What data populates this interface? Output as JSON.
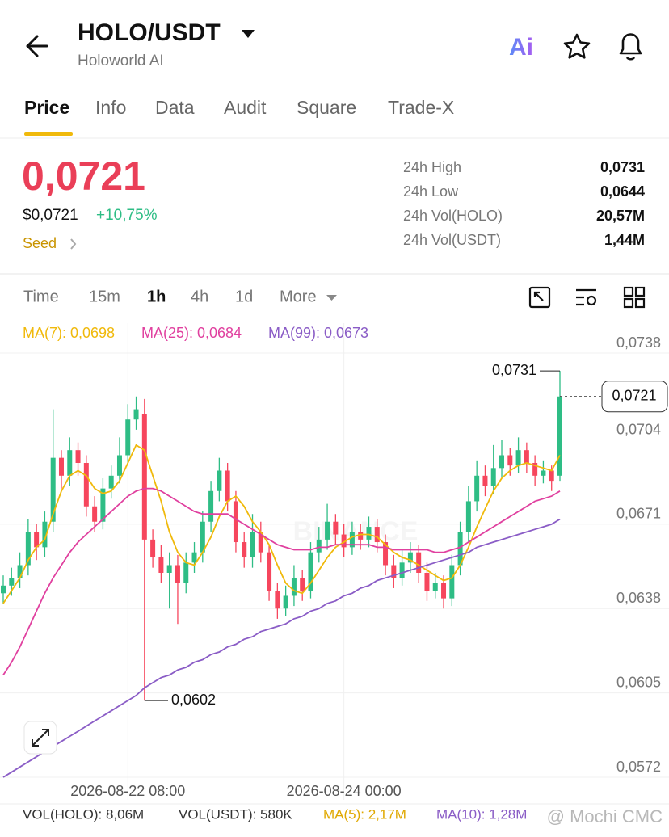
{
  "header": {
    "title": "HOLO/USDT",
    "subtitle": "Holoworld AI",
    "ai_button": "Ai"
  },
  "tabs": [
    "Price",
    "Info",
    "Data",
    "Audit",
    "Square",
    "Trade-X"
  ],
  "price": {
    "last": "0,0721",
    "usd": "$0,0721",
    "change": "+10,75%",
    "tag": "Seed"
  },
  "stats": [
    {
      "label": "24h High",
      "value": "0,0731"
    },
    {
      "label": "24h Low",
      "value": "0,0644"
    },
    {
      "label": "24h Vol(HOLO)",
      "value": "20,57M"
    },
    {
      "label": "24h Vol(USDT)",
      "value": "1,44M"
    }
  ],
  "timeframes": [
    "Time",
    "15m",
    "1h",
    "4h",
    "1d",
    "More"
  ],
  "volume_bar": [
    "VOL(HOLO): 8,06M",
    "VOL(USDT): 580K",
    "MA(5): 2,17M",
    "MA(10): 1,28M"
  ],
  "chart_watermark": "BINANCE",
  "watermark": "@ Mochi CMC",
  "chart_data": {
    "type": "candlestick",
    "grid": true,
    "up_color": "#2ebd85",
    "down_color": "#f6465d",
    "categories": [
      null,
      null,
      null,
      null,
      null,
      null,
      null,
      null,
      null,
      null,
      null,
      null,
      null,
      null,
      null,
      "2026-08-22 08:00",
      null,
      null,
      null,
      null,
      null,
      null,
      null,
      null,
      null,
      null,
      null,
      null,
      null,
      null,
      null,
      null,
      null,
      null,
      null,
      null,
      null,
      null,
      null,
      null,
      null,
      "2026-08-24 00:00",
      null,
      null,
      null,
      null,
      null,
      null,
      null,
      null,
      null,
      null,
      null,
      null,
      null,
      null,
      null,
      null,
      null,
      null,
      null,
      null,
      null,
      null,
      null,
      null,
      null,
      null
    ],
    "open": [
      0.0644,
      0.0647,
      0.065,
      0.0655,
      0.0668,
      0.0662,
      0.0672,
      0.0697,
      0.069,
      0.07,
      0.0695,
      0.0678,
      0.0672,
      0.0685,
      0.069,
      0.0698,
      0.0712,
      0.0714,
      0.0665,
      0.0658,
      0.0652,
      0.0655,
      0.0648,
      0.0656,
      0.066,
      0.0672,
      0.0684,
      0.0692,
      0.068,
      0.0664,
      0.0658,
      0.0668,
      0.066,
      0.0645,
      0.0638,
      0.0643,
      0.065,
      0.0645,
      0.066,
      0.0665,
      0.0672,
      0.0667,
      0.0662,
      0.0668,
      0.0665,
      0.067,
      0.0664,
      0.0655,
      0.065,
      0.0656,
      0.066,
      0.0652,
      0.0645,
      0.0648,
      0.0642,
      0.0655,
      0.0668,
      0.068,
      0.069,
      0.0686,
      0.0693,
      0.0698,
      0.0694,
      0.07,
      0.0695,
      0.069,
      0.0692,
      0.069
    ],
    "high": [
      0.0651,
      0.0654,
      0.066,
      0.0673,
      0.0671,
      0.0676,
      0.0716,
      0.07,
      0.0705,
      0.0703,
      0.0698,
      0.0682,
      0.0689,
      0.0694,
      0.0705,
      0.0718,
      0.0721,
      0.072,
      0.0669,
      0.0663,
      0.066,
      0.0659,
      0.066,
      0.0664,
      0.0676,
      0.0688,
      0.0697,
      0.0695,
      0.0684,
      0.0668,
      0.0675,
      0.0672,
      0.0663,
      0.0648,
      0.0647,
      0.0655,
      0.0653,
      0.0664,
      0.067,
      0.0679,
      0.0675,
      0.0671,
      0.0672,
      0.0671,
      0.0674,
      0.0673,
      0.0667,
      0.0659,
      0.0661,
      0.0664,
      0.0663,
      0.0656,
      0.0652,
      0.0651,
      0.0659,
      0.0672,
      0.0686,
      0.0696,
      0.0694,
      0.0702,
      0.0704,
      0.0701,
      0.0705,
      0.0703,
      0.0698,
      0.0696,
      0.0694,
      0.0731
    ],
    "low": [
      0.064,
      0.0643,
      0.0646,
      0.0651,
      0.0657,
      0.0658,
      0.0668,
      0.0685,
      0.0686,
      0.069,
      0.0674,
      0.0668,
      0.0669,
      0.0681,
      0.0687,
      0.0694,
      0.0708,
      0.0602,
      0.0654,
      0.0648,
      0.0638,
      0.0632,
      0.0644,
      0.0652,
      0.0656,
      0.0668,
      0.068,
      0.0676,
      0.066,
      0.0654,
      0.0654,
      0.0656,
      0.0641,
      0.0634,
      0.0635,
      0.0639,
      0.0641,
      0.0642,
      0.0656,
      0.0661,
      0.0663,
      0.0658,
      0.0659,
      0.0661,
      0.0662,
      0.066,
      0.0651,
      0.0646,
      0.0647,
      0.0652,
      0.0648,
      0.0641,
      0.0642,
      0.0638,
      0.0639,
      0.0651,
      0.0664,
      0.0676,
      0.0682,
      0.0683,
      0.0689,
      0.069,
      0.0691,
      0.0691,
      0.0686,
      0.0687,
      0.0684,
      0.0688
    ],
    "close": [
      0.0647,
      0.065,
      0.0655,
      0.0668,
      0.0662,
      0.0672,
      0.0697,
      0.069,
      0.07,
      0.0695,
      0.0678,
      0.0672,
      0.0685,
      0.069,
      0.0698,
      0.0712,
      0.0716,
      0.0665,
      0.0658,
      0.0652,
      0.0655,
      0.0648,
      0.0656,
      0.066,
      0.0672,
      0.0684,
      0.0692,
      0.068,
      0.0664,
      0.0658,
      0.0668,
      0.066,
      0.0645,
      0.0638,
      0.0643,
      0.065,
      0.0645,
      0.066,
      0.0665,
      0.0672,
      0.0667,
      0.0662,
      0.0668,
      0.0665,
      0.067,
      0.0664,
      0.0655,
      0.065,
      0.0656,
      0.066,
      0.0652,
      0.0645,
      0.0648,
      0.0642,
      0.0655,
      0.0668,
      0.068,
      0.069,
      0.0686,
      0.0693,
      0.0698,
      0.0694,
      0.07,
      0.0695,
      0.069,
      0.0692,
      0.0688,
      0.0721
    ],
    "series": [
      {
        "name": "MA(7): 0,0698",
        "color": "#f0b90b",
        "values": [
          0.064,
          0.0645,
          0.065,
          0.0657,
          0.0662,
          0.0665,
          0.0675,
          0.0684,
          0.069,
          0.0692,
          0.069,
          0.0685,
          0.0683,
          0.0684,
          0.0688,
          0.0695,
          0.0702,
          0.07,
          0.069,
          0.068,
          0.0668,
          0.066,
          0.0656,
          0.0655,
          0.066,
          0.0666,
          0.0674,
          0.068,
          0.0682,
          0.0678,
          0.0672,
          0.0668,
          0.0663,
          0.0655,
          0.0648,
          0.0645,
          0.0644,
          0.0648,
          0.0653,
          0.0658,
          0.0662,
          0.0664,
          0.0666,
          0.0667,
          0.0667,
          0.0666,
          0.0663,
          0.066,
          0.0658,
          0.0657,
          0.0655,
          0.0653,
          0.0651,
          0.0649,
          0.065,
          0.0655,
          0.0662,
          0.067,
          0.0677,
          0.0684,
          0.0689,
          0.0692,
          0.0694,
          0.0695,
          0.0694,
          0.0693,
          0.0692,
          0.0698
        ]
      },
      {
        "name": "MA(25): 0,0684",
        "color": "#e0409f",
        "values": [
          0.0612,
          0.0617,
          0.0623,
          0.063,
          0.0637,
          0.0644,
          0.065,
          0.0655,
          0.066,
          0.0664,
          0.0667,
          0.067,
          0.0673,
          0.0676,
          0.0679,
          0.0682,
          0.0684,
          0.0685,
          0.0685,
          0.0684,
          0.0682,
          0.068,
          0.0678,
          0.0676,
          0.0675,
          0.0675,
          0.0675,
          0.0675,
          0.0673,
          0.0671,
          0.0669,
          0.0667,
          0.0665,
          0.0663,
          0.0662,
          0.0661,
          0.0661,
          0.0661,
          0.0662,
          0.0662,
          0.0663,
          0.0663,
          0.0663,
          0.0663,
          0.0663,
          0.0662,
          0.0662,
          0.0661,
          0.0661,
          0.0661,
          0.0661,
          0.0661,
          0.066,
          0.066,
          0.0661,
          0.0662,
          0.0664,
          0.0666,
          0.0668,
          0.067,
          0.0672,
          0.0674,
          0.0676,
          0.0678,
          0.068,
          0.0681,
          0.0682,
          0.0684
        ]
      },
      {
        "name": "MA(99): 0,0673",
        "color": "#8a5cc6",
        "values": [
          0.0572,
          0.0574,
          0.0576,
          0.0578,
          0.058,
          0.0582,
          0.0584,
          0.0586,
          0.0588,
          0.059,
          0.0592,
          0.0594,
          0.0596,
          0.0598,
          0.06,
          0.0602,
          0.0604,
          0.0607,
          0.0609,
          0.0611,
          0.0612,
          0.0614,
          0.0615,
          0.0617,
          0.0618,
          0.062,
          0.0621,
          0.0623,
          0.0624,
          0.0626,
          0.0627,
          0.0629,
          0.063,
          0.0631,
          0.0632,
          0.0634,
          0.0635,
          0.0637,
          0.0638,
          0.064,
          0.0641,
          0.0643,
          0.0644,
          0.0646,
          0.0647,
          0.0649,
          0.065,
          0.0651,
          0.0652,
          0.0653,
          0.0654,
          0.0655,
          0.0656,
          0.0657,
          0.0658,
          0.0659,
          0.066,
          0.0662,
          0.0663,
          0.0664,
          0.0665,
          0.0666,
          0.0667,
          0.0668,
          0.0669,
          0.067,
          0.0671,
          0.0673
        ]
      }
    ],
    "ylim": [
      0.0572,
      0.0738
    ],
    "yticks": [
      {
        "value": 0.0738,
        "label": "0,0738"
      },
      {
        "value": 0.0704,
        "label": "0,0704"
      },
      {
        "value": 0.0671,
        "label": "0,0671"
      },
      {
        "value": 0.0638,
        "label": "0,0638"
      },
      {
        "value": 0.0605,
        "label": "0,0605"
      },
      {
        "value": 0.0572,
        "label": "0,0572"
      }
    ],
    "high_marker": {
      "value": 0.0731,
      "label": "0,0731"
    },
    "low_marker": {
      "value": 0.0602,
      "label": "0,0602"
    },
    "last_price": {
      "value": 0.0721,
      "label": "0,0721"
    }
  }
}
